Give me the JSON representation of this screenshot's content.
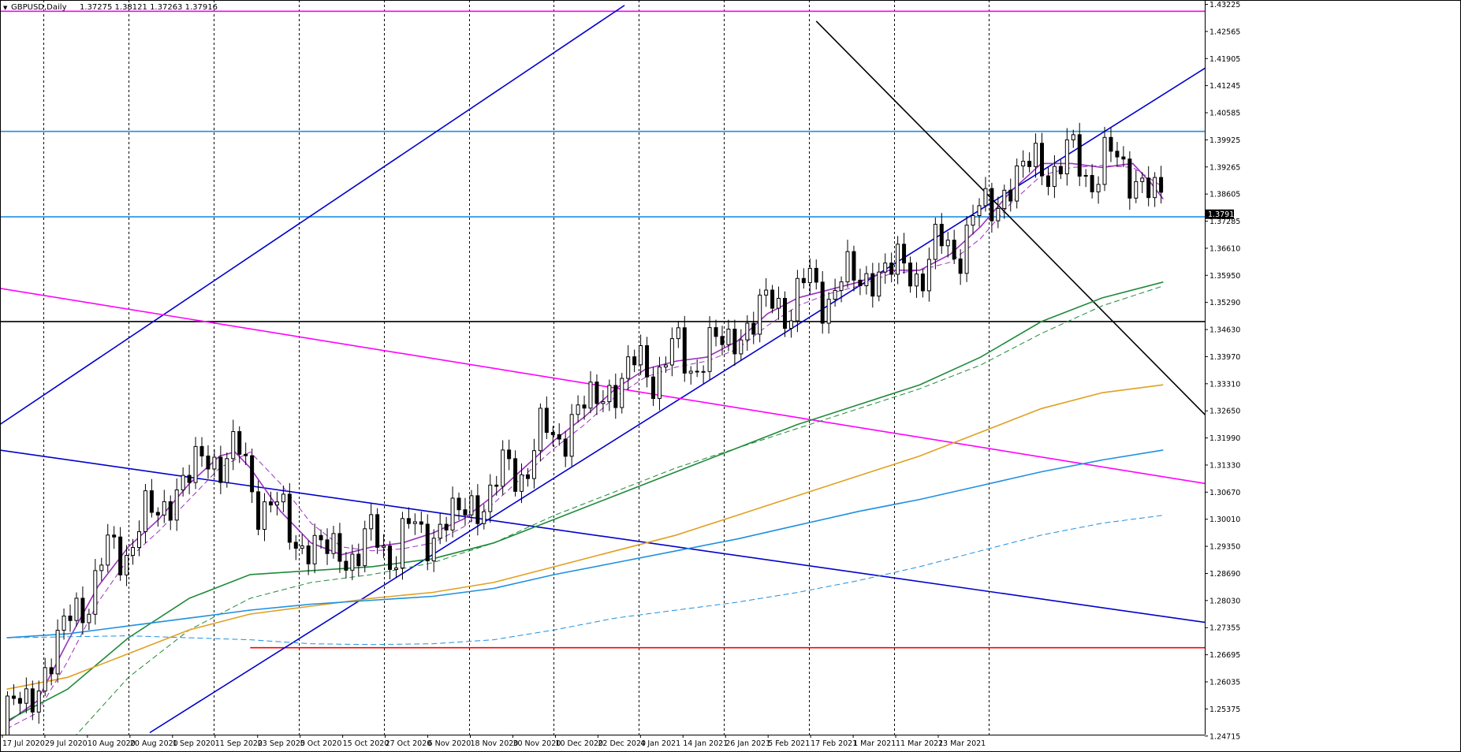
{
  "header": {
    "collapse_glyph": "▼",
    "symbol_label": "GBPUSD,Daily",
    "ohlc_text": "1.37275 1.38121 1.37263 1.37916"
  },
  "chart_data": {
    "type": "candlestick",
    "title": "GBPUSD,Daily",
    "ylim": [
      1.24715,
      1.43225
    ],
    "grid": "vertical-dotted",
    "y_ticks": [
      "1.43225",
      "1.42565",
      "1.41905",
      "1.41245",
      "1.40585",
      "1.39925",
      "1.39265",
      "1.38605",
      "1.37285",
      "1.36610",
      "1.35950",
      "1.35290",
      "1.34630",
      "1.33970",
      "1.33310",
      "1.32650",
      "1.31990",
      "1.31330",
      "1.30670",
      "1.30010",
      "1.29350",
      "1.28690",
      "1.28030",
      "1.27355",
      "1.26695",
      "1.26035",
      "1.25375",
      "1.24715"
    ],
    "current_price": "1.37916",
    "x_ticks": [
      "17 Jul 2020",
      "29 Jul 2020",
      "10 Aug 2020",
      "20 Aug 2020",
      "1 Sep 2020",
      "11 Sep 2020",
      "23 Sep 2020",
      "5 Oct 2020",
      "15 Oct 2020",
      "27 Oct 2020",
      "6 Nov 2020",
      "18 Nov 2020",
      "30 Nov 2020",
      "10 Dec 2020",
      "22 Dec 2020",
      "4 Jan 2021",
      "14 Jan 2021",
      "26 Jan 2021",
      "5 Feb 2021",
      "17 Feb 2021",
      "1 Mar 2021",
      "11 Mar 2021",
      "23 Mar 2021"
    ],
    "colors": {
      "bull": "#ffffff",
      "bear": "#000000",
      "ma_fast": "#9b30c0",
      "ma_mid": "#1e8a3a",
      "ma_slow": "#e0a020",
      "ma_long": "#1e90e0",
      "magenta": "#ff00ff",
      "channel": "#0000cc",
      "hline_blue": "#1e90e0",
      "support_red": "#ff0000",
      "black": "#000000"
    },
    "moving_averages": [
      {
        "role": "fast",
        "style": "solid",
        "color": "#9b30c0",
        "points": [
          [
            0,
            1.2505
          ],
          [
            10,
            1.256
          ],
          [
            20,
            1.271
          ],
          [
            30,
            1.285
          ],
          [
            40,
            1.295
          ],
          [
            50,
            1.302
          ],
          [
            60,
            1.311
          ],
          [
            70,
            1.318
          ],
          [
            75,
            1.319
          ],
          [
            80,
            1.315
          ],
          [
            90,
            1.304
          ],
          [
            100,
            1.296
          ],
          [
            110,
            1.293
          ],
          [
            120,
            1.295
          ],
          [
            130,
            1.296
          ],
          [
            140,
            1.2985
          ],
          [
            150,
            1.302
          ],
          [
            160,
            1.308
          ],
          [
            170,
            1.315
          ],
          [
            180,
            1.322
          ],
          [
            190,
            1.328
          ],
          [
            200,
            1.335
          ],
          [
            210,
            1.34
          ],
          [
            220,
            1.342
          ],
          [
            230,
            1.343
          ],
          [
            240,
            1.347
          ],
          [
            250,
            1.354
          ],
          [
            260,
            1.358
          ],
          [
            270,
            1.36
          ],
          [
            280,
            1.362
          ],
          [
            290,
            1.365
          ],
          [
            300,
            1.365
          ],
          [
            310,
            1.369
          ],
          [
            320,
            1.376
          ],
          [
            330,
            1.385
          ],
          [
            340,
            1.392
          ],
          [
            350,
            1.392
          ],
          [
            360,
            1.391
          ],
          [
            370,
            1.392
          ],
          [
            376,
            1.387
          ],
          [
            380,
            1.383
          ]
        ]
      },
      {
        "role": "fast-signal",
        "style": "dashed",
        "color": "#9b30c0",
        "points": [
          [
            0,
            1.249
          ],
          [
            10,
            1.253
          ],
          [
            20,
            1.266
          ],
          [
            30,
            1.281
          ],
          [
            40,
            1.292
          ],
          [
            50,
            1.299
          ],
          [
            60,
            1.307
          ],
          [
            70,
            1.315
          ],
          [
            80,
            1.319
          ],
          [
            90,
            1.311
          ],
          [
            100,
            1.301
          ],
          [
            110,
            1.295
          ],
          [
            120,
            1.294
          ],
          [
            130,
            1.2945
          ],
          [
            140,
            1.296
          ],
          [
            150,
            1.3
          ],
          [
            160,
            1.306
          ],
          [
            170,
            1.313
          ],
          [
            180,
            1.32
          ],
          [
            190,
            1.326
          ],
          [
            200,
            1.333
          ],
          [
            210,
            1.338
          ],
          [
            220,
            1.3405
          ],
          [
            230,
            1.342
          ],
          [
            240,
            1.345
          ],
          [
            250,
            1.351
          ],
          [
            260,
            1.356
          ],
          [
            270,
            1.359
          ],
          [
            280,
            1.361
          ],
          [
            290,
            1.364
          ],
          [
            300,
            1.365
          ],
          [
            310,
            1.367
          ],
          [
            320,
            1.373
          ],
          [
            330,
            1.382
          ],
          [
            340,
            1.389
          ],
          [
            350,
            1.391
          ],
          [
            360,
            1.3915
          ],
          [
            370,
            1.391
          ],
          [
            380,
            1.386
          ]
        ]
      },
      {
        "role": "mid",
        "style": "solid",
        "color": "#1e8a3a",
        "points": [
          [
            0,
            1.251
          ],
          [
            20,
            1.259
          ],
          [
            40,
            1.272
          ],
          [
            60,
            1.282
          ],
          [
            80,
            1.288
          ],
          [
            100,
            1.289
          ],
          [
            120,
            1.29
          ],
          [
            140,
            1.292
          ],
          [
            160,
            1.296
          ],
          [
            180,
            1.302
          ],
          [
            200,
            1.308
          ],
          [
            220,
            1.314
          ],
          [
            240,
            1.32
          ],
          [
            260,
            1.326
          ],
          [
            280,
            1.331
          ],
          [
            300,
            1.336
          ],
          [
            320,
            1.343
          ],
          [
            340,
            1.352
          ],
          [
            360,
            1.358
          ],
          [
            380,
            1.362
          ]
        ]
      },
      {
        "role": "mid-signal",
        "style": "dashed",
        "color": "#1e8a3a",
        "points": [
          [
            20,
            1.245
          ],
          [
            40,
            1.262
          ],
          [
            60,
            1.274
          ],
          [
            80,
            1.282
          ],
          [
            100,
            1.286
          ],
          [
            120,
            1.288
          ],
          [
            140,
            1.291
          ],
          [
            160,
            1.296
          ],
          [
            180,
            1.303
          ],
          [
            200,
            1.309
          ],
          [
            220,
            1.315
          ],
          [
            240,
            1.32
          ],
          [
            260,
            1.325
          ],
          [
            280,
            1.33
          ],
          [
            300,
            1.335
          ],
          [
            320,
            1.341
          ],
          [
            340,
            1.349
          ],
          [
            360,
            1.356
          ],
          [
            380,
            1.361
          ]
        ]
      },
      {
        "role": "slow",
        "style": "solid",
        "color": "#e0a020",
        "points": [
          [
            0,
            1.259
          ],
          [
            20,
            1.262
          ],
          [
            40,
            1.268
          ],
          [
            60,
            1.274
          ],
          [
            80,
            1.278
          ],
          [
            100,
            1.28
          ],
          [
            120,
            1.282
          ],
          [
            140,
            1.2835
          ],
          [
            160,
            1.286
          ],
          [
            180,
            1.29
          ],
          [
            200,
            1.294
          ],
          [
            220,
            1.298
          ],
          [
            240,
            1.303
          ],
          [
            260,
            1.308
          ],
          [
            280,
            1.313
          ],
          [
            300,
            1.318
          ],
          [
            320,
            1.324
          ],
          [
            340,
            1.33
          ],
          [
            360,
            1.334
          ],
          [
            380,
            1.336
          ]
        ]
      },
      {
        "role": "long",
        "style": "solid",
        "color": "#1e90e0",
        "points": [
          [
            0,
            1.272
          ],
          [
            20,
            1.273
          ],
          [
            40,
            1.275
          ],
          [
            60,
            1.277
          ],
          [
            80,
            1.279
          ],
          [
            100,
            1.2805
          ],
          [
            120,
            1.2815
          ],
          [
            140,
            1.2825
          ],
          [
            160,
            1.2845
          ],
          [
            180,
            1.288
          ],
          [
            200,
            1.291
          ],
          [
            220,
            1.294
          ],
          [
            240,
            1.297
          ],
          [
            260,
            1.3005
          ],
          [
            280,
            1.304
          ],
          [
            300,
            1.307
          ],
          [
            320,
            1.3105
          ],
          [
            340,
            1.314
          ],
          [
            360,
            1.317
          ],
          [
            380,
            1.3195
          ]
        ]
      },
      {
        "role": "long-signal",
        "style": "dashed",
        "color": "#1e90e0",
        "points": [
          [
            0,
            1.272
          ],
          [
            40,
            1.2725
          ],
          [
            80,
            1.2715
          ],
          [
            100,
            1.2705
          ],
          [
            120,
            1.2703
          ],
          [
            140,
            1.2705
          ],
          [
            160,
            1.2715
          ],
          [
            180,
            1.274
          ],
          [
            200,
            1.277
          ],
          [
            220,
            1.279
          ],
          [
            240,
            1.281
          ],
          [
            260,
            1.2835
          ],
          [
            280,
            1.2865
          ],
          [
            300,
            1.29
          ],
          [
            320,
            1.294
          ],
          [
            340,
            1.298
          ],
          [
            360,
            1.301
          ],
          [
            380,
            1.303
          ]
        ]
      }
    ],
    "horizontal_lines": [
      {
        "role": "resistance-top",
        "color": "#ff00ff",
        "price": 1.4305
      },
      {
        "role": "resistance-blue-1",
        "color": "#1e90e0",
        "price": 1.4001
      },
      {
        "role": "resistance-blue-2",
        "color": "#1e90e0",
        "price": 1.3785
      },
      {
        "role": "support-black",
        "color": "#000000",
        "price": 1.352
      },
      {
        "role": "support-red",
        "color": "#ff0000",
        "price": 1.2695,
        "from_bar": 80
      }
    ],
    "trend_lines": [
      {
        "role": "channel-upper",
        "color": "#0000cc",
        "from": [
          -7,
          1.3235
        ],
        "to": [
          203,
          1.432
        ]
      },
      {
        "role": "channel-lower",
        "color": "#0000cc",
        "from": [
          47,
          1.248
        ],
        "to": [
          402,
          1.4201
        ]
      },
      {
        "role": "descending-blue",
        "color": "#0000cc",
        "from": [
          -7,
          1.32
        ],
        "to": [
          402,
          1.275
        ]
      },
      {
        "role": "descending-magenta",
        "color": "#ff00ff",
        "from": [
          -7,
          1.361
        ],
        "to": [
          402,
          1.31
        ]
      },
      {
        "role": "descending-black",
        "color": "#000000",
        "from": [
          266,
          1.428
        ],
        "to": [
          402,
          1.322
        ]
      }
    ]
  }
}
